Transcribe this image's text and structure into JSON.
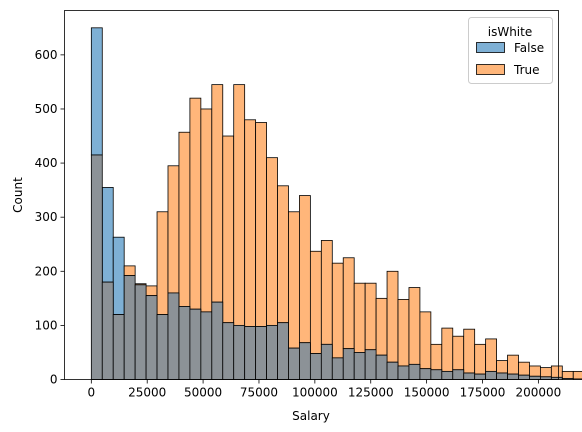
{
  "chart_data": {
    "type": "bar",
    "subtype": "overlaid-histogram",
    "title": "",
    "xlabel": "Salary",
    "ylabel": "Count",
    "xlim": [
      -12000,
      209000
    ],
    "ylim": [
      0,
      682
    ],
    "xticks": [
      0,
      25000,
      50000,
      75000,
      100000,
      125000,
      150000,
      175000,
      200000
    ],
    "yticks": [
      0,
      100,
      200,
      300,
      400,
      500,
      600
    ],
    "grid": false,
    "legend": {
      "title": "isWhite",
      "position": "top-right"
    },
    "bin_start": 0,
    "bin_width": 4900,
    "series": [
      {
        "name": "False",
        "color": "#1f77b4",
        "values": [
          650,
          355,
          263,
          192,
          175,
          155,
          120,
          160,
          135,
          130,
          125,
          143,
          105,
          100,
          98,
          98,
          100,
          105,
          58,
          68,
          48,
          65,
          40,
          57,
          50,
          55,
          45,
          32,
          25,
          28,
          20,
          18,
          15,
          18,
          12,
          10,
          15,
          12,
          10,
          8,
          6,
          5,
          4,
          2,
          1,
          1
        ]
      },
      {
        "name": "True",
        "color": "#ff7f0e",
        "values": [
          415,
          180,
          120,
          210,
          177,
          173,
          310,
          395,
          457,
          520,
          500,
          545,
          450,
          545,
          480,
          475,
          410,
          358,
          310,
          340,
          237,
          257,
          215,
          225,
          178,
          178,
          150,
          200,
          148,
          170,
          125,
          65,
          95,
          80,
          93,
          65,
          75,
          35,
          45,
          32,
          25,
          22,
          25,
          15,
          15,
          8
        ]
      }
    ]
  }
}
